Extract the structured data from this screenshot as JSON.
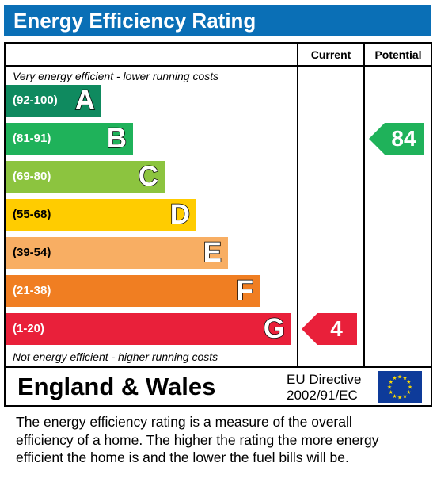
{
  "title": "Energy Efficiency Rating",
  "columns": {
    "current": "Current",
    "potential": "Potential"
  },
  "top_note": "Very energy efficient - lower running costs",
  "bottom_note": "Not energy efficient - higher running costs",
  "chart_data": {
    "type": "bar",
    "title": "Energy Efficiency Rating",
    "categories": [
      "A",
      "B",
      "C",
      "D",
      "E",
      "F",
      "G"
    ],
    "ranges": [
      "(92-100)",
      "(81-91)",
      "(69-80)",
      "(55-68)",
      "(39-54)",
      "(21-38)",
      "(1-20)"
    ],
    "colors": [
      "#0f8a5f",
      "#1fb25a",
      "#8cc43f",
      "#ffcc00",
      "#f8ae63",
      "#f07e22",
      "#e9203a"
    ],
    "current": {
      "value": 4,
      "band": "G",
      "color": "#e9203a"
    },
    "potential": {
      "value": 84,
      "band": "B",
      "color": "#1fb25a"
    }
  },
  "footer": {
    "region": "England & Wales",
    "directive_line1": "EU Directive",
    "directive_line2": "2002/91/EC",
    "flag": "eu-flag-icon"
  },
  "description": [
    "The energy efficiency rating is a measure of the overall",
    "efficiency of a home.  The higher the rating the more energy",
    "efficient the home is and the lower the fuel bills will be."
  ]
}
